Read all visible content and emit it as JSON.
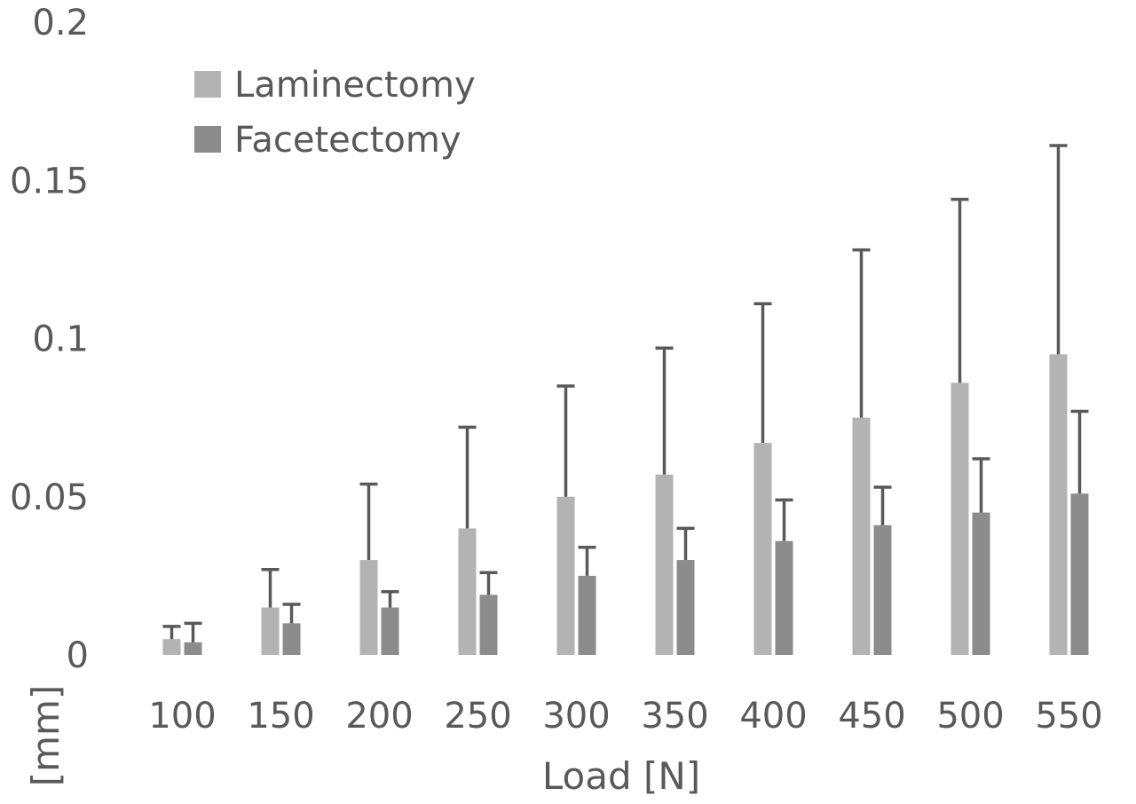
{
  "chart_data": {
    "type": "bar",
    "title": "",
    "xlabel": "Load [N]",
    "ylabel": "[mm]",
    "categories": [
      "100",
      "150",
      "200",
      "250",
      "300",
      "350",
      "400",
      "450",
      "500",
      "550"
    ],
    "ylim": [
      0,
      0.2
    ],
    "y_ticks": [
      "0",
      "0.05",
      "0.1",
      "0.15",
      "0.2"
    ],
    "grid": false,
    "legend_position": "top-left",
    "series": [
      {
        "name": "Laminectomy",
        "color": "#b3b3b3",
        "values": [
          0.005,
          0.015,
          0.03,
          0.04,
          0.05,
          0.057,
          0.067,
          0.075,
          0.086,
          0.095
        ],
        "error_plus": [
          0.004,
          0.012,
          0.024,
          0.032,
          0.035,
          0.04,
          0.044,
          0.053,
          0.058,
          0.066
        ]
      },
      {
        "name": "Facetectomy",
        "color": "#8c8c8c",
        "values": [
          0.004,
          0.01,
          0.015,
          0.019,
          0.025,
          0.03,
          0.036,
          0.041,
          0.045,
          0.051
        ],
        "error_plus": [
          0.006,
          0.006,
          0.005,
          0.007,
          0.009,
          0.01,
          0.013,
          0.012,
          0.017,
          0.026
        ]
      }
    ],
    "error_bar_color": "#595959"
  }
}
